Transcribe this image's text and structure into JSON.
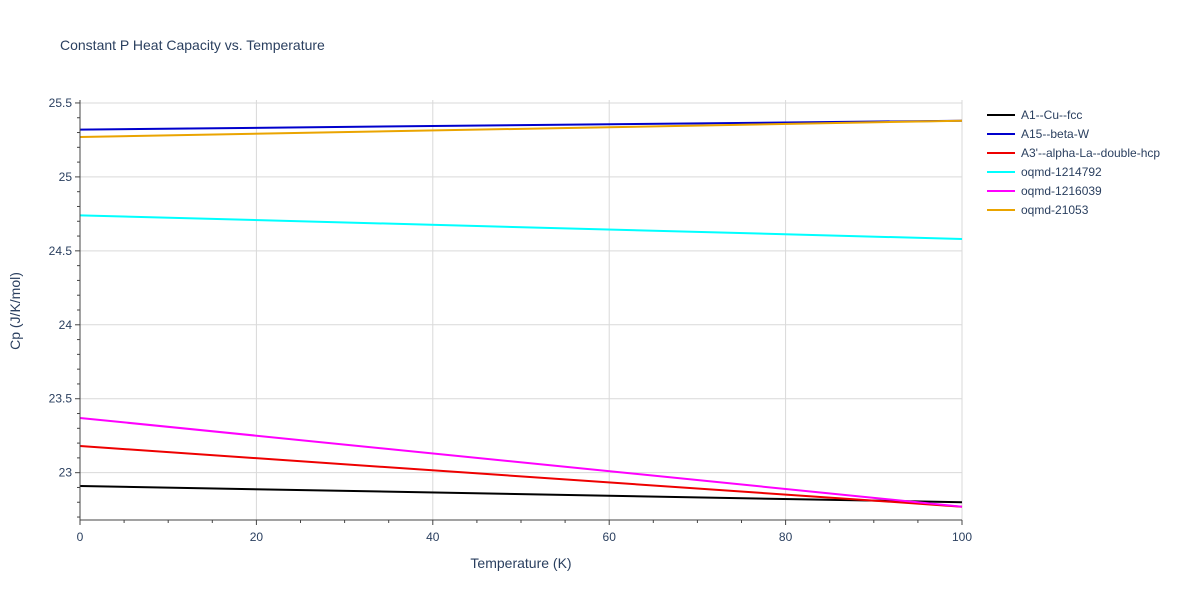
{
  "chart_data": {
    "type": "line",
    "title": "Constant P Heat Capacity vs. Temperature",
    "xlabel": "Temperature (K)",
    "ylabel": "Cp (J/K/mol)",
    "xlim": [
      0,
      100
    ],
    "ylim": [
      22.68,
      25.52
    ],
    "x_ticks": [
      0,
      20,
      40,
      60,
      80,
      100
    ],
    "y_ticks": [
      23,
      23.5,
      24,
      24.5,
      25,
      25.5
    ],
    "grid": true,
    "legend_position": "top-right",
    "x": [
      0,
      100
    ],
    "series": [
      {
        "name": "A1--Cu--fcc",
        "color": "#000000",
        "values": [
          22.91,
          22.8
        ]
      },
      {
        "name": "A15--beta-W",
        "color": "#0000cc",
        "values": [
          25.32,
          25.38
        ]
      },
      {
        "name": "A3'--alpha-La--double-hcp",
        "color": "#ee0000",
        "values": [
          23.18,
          22.77
        ]
      },
      {
        "name": "oqmd-1214792",
        "color": "#00ffff",
        "values": [
          24.74,
          24.58
        ]
      },
      {
        "name": "oqmd-1216039",
        "color": "#ff00ff",
        "values": [
          23.37,
          22.77
        ]
      },
      {
        "name": "oqmd-21053",
        "color": "#eaa400",
        "values": [
          25.27,
          25.38
        ]
      }
    ]
  }
}
